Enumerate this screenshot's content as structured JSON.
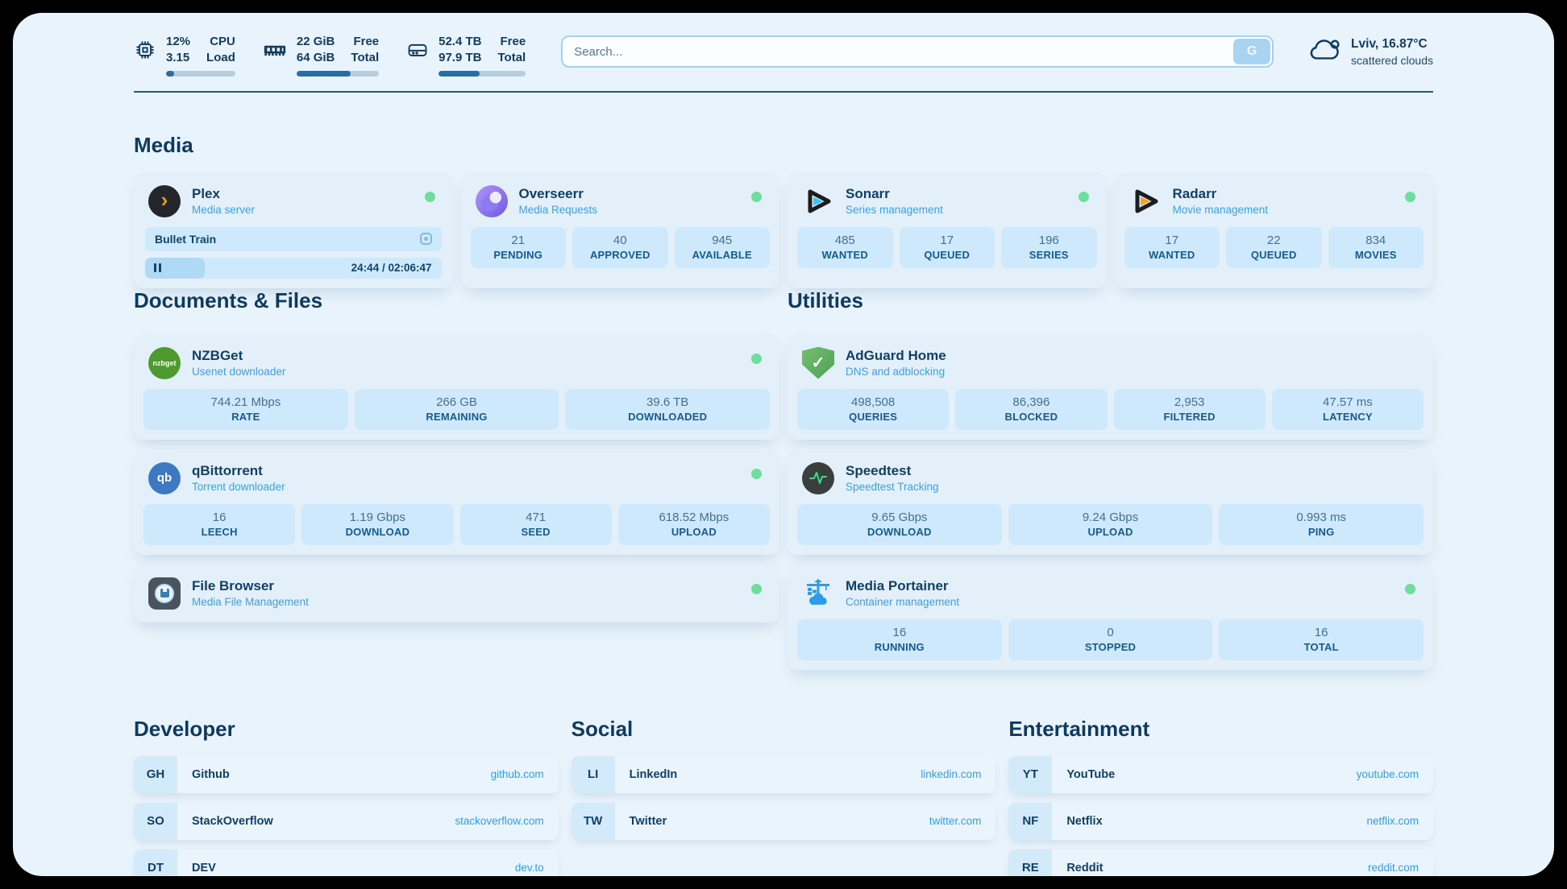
{
  "topbar": {
    "cpu": {
      "value_top": "12%",
      "value_bottom": "3.15",
      "label_top": "CPU",
      "label_bottom": "Load",
      "percent": 12
    },
    "memory": {
      "value_top": "22 GiB",
      "value_bottom": "64 GiB",
      "label_top": "Free",
      "label_bottom": "Total",
      "percent": 66
    },
    "disk": {
      "value_top": "52.4 TB",
      "value_bottom": "97.9 TB",
      "label_top": "Free",
      "label_bottom": "Total",
      "percent": 47
    },
    "search": {
      "placeholder": "Search...",
      "button_label": "G"
    },
    "weather": {
      "summary": "Lviv, 16.87°C",
      "condition": "scattered clouds"
    }
  },
  "glyphs": {
    "plex": "›",
    "nzbget": "nzbget",
    "qbittorrent": "qb",
    "adguard_check": "✓"
  },
  "media": {
    "heading": "Media",
    "plex": {
      "title": "Plex",
      "subtitle": "Media server",
      "now_playing": "Bullet Train",
      "time_display": "24:44 / 02:06:47",
      "progress_percent": 20
    },
    "overseerr": {
      "title": "Overseerr",
      "subtitle": "Media Requests",
      "stats": [
        {
          "value": "21",
          "label": "PENDING"
        },
        {
          "value": "40",
          "label": "APPROVED"
        },
        {
          "value": "945",
          "label": "AVAILABLE"
        }
      ]
    },
    "sonarr": {
      "title": "Sonarr",
      "subtitle": "Series management",
      "stats": [
        {
          "value": "485",
          "label": "WANTED"
        },
        {
          "value": "17",
          "label": "QUEUED"
        },
        {
          "value": "196",
          "label": "SERIES"
        }
      ]
    },
    "radarr": {
      "title": "Radarr",
      "subtitle": "Movie management",
      "stats": [
        {
          "value": "17",
          "label": "WANTED"
        },
        {
          "value": "22",
          "label": "QUEUED"
        },
        {
          "value": "834",
          "label": "MOVIES"
        }
      ]
    }
  },
  "documents": {
    "heading": "Documents & Files",
    "nzbget": {
      "title": "NZBGet",
      "subtitle": "Usenet downloader",
      "stats": [
        {
          "value": "744.21 Mbps",
          "label": "RATE"
        },
        {
          "value": "266 GB",
          "label": "REMAINING"
        },
        {
          "value": "39.6 TB",
          "label": "DOWNLOADED"
        }
      ]
    },
    "qbittorrent": {
      "title": "qBittorrent",
      "subtitle": "Torrent downloader",
      "stats": [
        {
          "value": "16",
          "label": "LEECH"
        },
        {
          "value": "1.19 Gbps",
          "label": "DOWNLOAD"
        },
        {
          "value": "471",
          "label": "SEED"
        },
        {
          "value": "618.52 Mbps",
          "label": "UPLOAD"
        }
      ]
    },
    "filebrowser": {
      "title": "File Browser",
      "subtitle": "Media File Management"
    }
  },
  "utilities": {
    "heading": "Utilities",
    "adguard": {
      "title": "AdGuard Home",
      "subtitle": "DNS and adblocking",
      "stats": [
        {
          "value": "498,508",
          "label": "QUERIES"
        },
        {
          "value": "86,396",
          "label": "BLOCKED"
        },
        {
          "value": "2,953",
          "label": "FILTERED"
        },
        {
          "value": "47.57 ms",
          "label": "LATENCY"
        }
      ]
    },
    "speedtest": {
      "title": "Speedtest",
      "subtitle": "Speedtest Tracking",
      "stats": [
        {
          "value": "9.65 Gbps",
          "label": "DOWNLOAD"
        },
        {
          "value": "9.24 Gbps",
          "label": "UPLOAD"
        },
        {
          "value": "0.993 ms",
          "label": "PING"
        }
      ]
    },
    "portainer": {
      "title": "Media Portainer",
      "subtitle": "Container management",
      "stats": [
        {
          "value": "16",
          "label": "RUNNING"
        },
        {
          "value": "0",
          "label": "STOPPED"
        },
        {
          "value": "16",
          "label": "TOTAL"
        }
      ]
    }
  },
  "bookmarks": {
    "developer": {
      "heading": "Developer",
      "items": [
        {
          "abbr": "GH",
          "name": "Github",
          "href": "github.com"
        },
        {
          "abbr": "SO",
          "name": "StackOverflow",
          "href": "stackoverflow.com"
        },
        {
          "abbr": "DT",
          "name": "DEV",
          "href": "dev.to"
        }
      ]
    },
    "social": {
      "heading": "Social",
      "items": [
        {
          "abbr": "LI",
          "name": "LinkedIn",
          "href": "linkedin.com"
        },
        {
          "abbr": "TW",
          "name": "Twitter",
          "href": "twitter.com"
        }
      ]
    },
    "entertainment": {
      "heading": "Entertainment",
      "items": [
        {
          "abbr": "YT",
          "name": "YouTube",
          "href": "youtube.com"
        },
        {
          "abbr": "NF",
          "name": "Netflix",
          "href": "netflix.com"
        },
        {
          "abbr": "RE",
          "name": "Reddit",
          "href": "reddit.com"
        }
      ]
    }
  }
}
